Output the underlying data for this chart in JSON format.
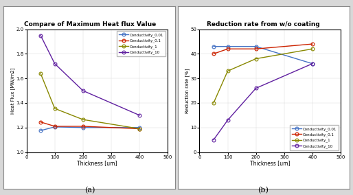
{
  "thickness": [
    50,
    100,
    200,
    400
  ],
  "heat_flux": {
    "Conductivity_0.01": [
      1.175,
      1.205,
      1.2,
      1.2
    ],
    "Conductivity_0.1": [
      1.245,
      1.21,
      1.21,
      1.19
    ],
    "Conductivity_1": [
      1.64,
      1.355,
      1.265,
      1.19
    ],
    "Conductivity_10": [
      1.95,
      1.72,
      1.5,
      1.3
    ]
  },
  "reduction": {
    "Conductivity_0.01": [
      43,
      43,
      43,
      36
    ],
    "Conductivity_0.1": [
      40,
      42,
      42,
      44
    ],
    "Conductivity_1": [
      20,
      33,
      38,
      42
    ],
    "Conductivity_10": [
      5,
      13,
      26,
      36
    ]
  },
  "colors": {
    "Conductivity_0.01": "#4472C4",
    "Conductivity_0.1": "#CC0000",
    "Conductivity_1": "#9999000",
    "Conductivity_10": "#7030A0"
  },
  "line_colors": {
    "Conductivity_0.01": "#4472C4",
    "Conductivity_0.1": "#CC2200",
    "Conductivity_1": "#888800",
    "Conductivity_10": "#6020A0"
  },
  "title_a": "Compare of Maximum Heat flux Value",
  "title_b": "Reduction rate from w/o coating",
  "xlabel": "Thickness [um]",
  "ylabel_a": "Heat Flux [MW/m2]",
  "ylabel_b": "Reduction rate [%]",
  "xlim": [
    0,
    500
  ],
  "ylim_a": [
    1.0,
    2.0
  ],
  "ylim_b": [
    0,
    50
  ],
  "xticks": [
    0,
    100,
    200,
    300,
    400,
    500
  ],
  "yticks_a": [
    1.0,
    1.2,
    1.4,
    1.6,
    1.8,
    2.0
  ],
  "yticks_b": [
    0,
    10,
    20,
    30,
    40,
    50
  ],
  "label_a": "(a)",
  "label_b": "(b)",
  "legend_loc_a": "upper right",
  "legend_loc_b": "lower right",
  "bg_color": "#d8d8d8",
  "panel_bg": "#ffffff",
  "plot_area_bg": "#ffffff"
}
